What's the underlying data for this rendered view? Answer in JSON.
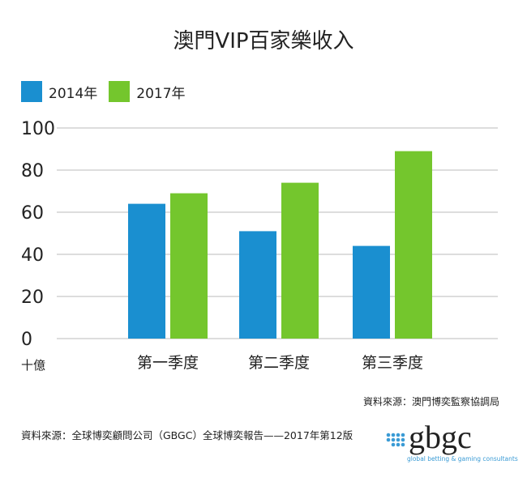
{
  "title": "澳門VIP百家樂收入",
  "unit_label": "十億",
  "source_right": "資料來源：澳門博奕監察協調局",
  "source_left": "資料來源：全球博奕顧問公司（GBGC）全球博奕報告——2017年第12版",
  "logo": {
    "text": "gbgc",
    "tagline": "global betting & gaming consultants"
  },
  "colors": {
    "series_2014": "#1a8fd0",
    "series_2017": "#74c62d",
    "grid": "#bbbbbb"
  },
  "chart_data": {
    "type": "bar",
    "title": "澳門VIP百家樂收入",
    "ylabel": "十億",
    "categories": [
      "第一季度",
      "第二季度",
      "第三季度"
    ],
    "series": [
      {
        "name": "2014年",
        "values": [
          64,
          51,
          44
        ]
      },
      {
        "name": "2017年",
        "values": [
          69,
          74,
          89
        ]
      }
    ],
    "ylim": [
      0,
      100
    ],
    "yticks": [
      0,
      20,
      40,
      60,
      80,
      100
    ],
    "grid": true,
    "legend": "top-left"
  }
}
